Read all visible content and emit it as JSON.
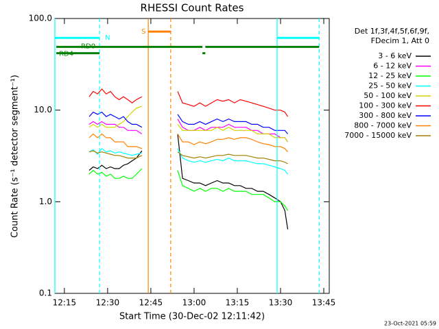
{
  "chart_data": {
    "type": "line",
    "title": "RHESSI Count Rates",
    "x_label": "Start Time (30-Dec-02 12:11:42)",
    "y_label": "Count Rate (s⁻¹ detector segment⁻¹)",
    "legend_header": [
      "Det 1f,3f,4f,5f,6f,9f,",
      "FDecim 1, Att 0"
    ],
    "footer": "23-Oct-2021 05:59",
    "log_y": true,
    "xlim": [
      731.7,
      826.9
    ],
    "ylim": [
      0.1,
      100
    ],
    "xticks": [
      {
        "value": 735,
        "label": "12:15"
      },
      {
        "value": 750,
        "label": "12:30"
      },
      {
        "value": 765,
        "label": "12:45"
      },
      {
        "value": 780,
        "label": "13:00"
      },
      {
        "value": 795,
        "label": "13:15"
      },
      {
        "value": 810,
        "label": "13:30"
      },
      {
        "value": 825,
        "label": "13:45"
      }
    ],
    "yticks": [
      0.1,
      {
        "value": 1,
        "label": "1.0"
      },
      {
        "value": 10,
        "label": "10.0"
      },
      {
        "value": 100,
        "label": "100.0"
      }
    ],
    "x": [
      743.6,
      745,
      746.5,
      748,
      749.5,
      751,
      752.5,
      754,
      755.5,
      757,
      758.5,
      760,
      761.9,
      768,
      774.3,
      776,
      778,
      780,
      782,
      784,
      786,
      788,
      790,
      792,
      794,
      796,
      798,
      800,
      802,
      804,
      806,
      808,
      810,
      811.5,
      812.5
    ],
    "series": [
      {
        "name": "3 - 6 keV",
        "color": "#000000",
        "values": [
          2.2,
          2.4,
          2.3,
          2.5,
          2.3,
          2.4,
          2.3,
          2.3,
          2.5,
          2.6,
          2.8,
          3,
          3.6,
          null,
          5.5,
          1.8,
          1.7,
          1.6,
          1.6,
          1.5,
          1.6,
          1.7,
          1.6,
          1.6,
          1.5,
          1.5,
          1.4,
          1.4,
          1.3,
          1.3,
          1.2,
          1.1,
          1,
          0.8,
          0.5
        ]
      },
      {
        "name": "6 - 12 keV",
        "color": "#ff00ff",
        "values": [
          7,
          7.5,
          7,
          7.5,
          7,
          7,
          7,
          6.5,
          6.5,
          6,
          6,
          6,
          5.5,
          null,
          8,
          6.5,
          6,
          6,
          6.5,
          6,
          6.5,
          6.5,
          6.5,
          7,
          6.5,
          6.5,
          6.5,
          6,
          6,
          5.5,
          5.5,
          5.5,
          5,
          5,
          4.5
        ]
      },
      {
        "name": "12 - 25 keV",
        "color": "#00ff00",
        "values": [
          2,
          2.2,
          2,
          2.1,
          1.9,
          2,
          1.8,
          1.8,
          1.9,
          1.8,
          1.8,
          2,
          2.3,
          null,
          2.2,
          1.5,
          1.4,
          1.3,
          1.4,
          1.3,
          1.4,
          1.4,
          1.3,
          1.4,
          1.3,
          1.3,
          1.3,
          1.2,
          1.2,
          1.2,
          1.1,
          1,
          1,
          0.9,
          0.8
        ]
      },
      {
        "name": "25 - 50 keV",
        "color": "#00ffff",
        "values": [
          3.5,
          3.7,
          3.3,
          3.8,
          3.5,
          3.6,
          3.4,
          3.5,
          3.4,
          3.3,
          3.2,
          3.3,
          3.4,
          null,
          3.8,
          3,
          2.8,
          2.7,
          2.8,
          2.7,
          2.8,
          2.9,
          2.8,
          3,
          2.8,
          2.8,
          2.8,
          2.7,
          2.6,
          2.6,
          2.5,
          2.4,
          2.3,
          2.2,
          2
        ]
      },
      {
        "name": "50 - 100 keV",
        "color": "#d4d400",
        "values": [
          6.5,
          7,
          6.5,
          7,
          6.5,
          6.5,
          6.5,
          7,
          7.5,
          8.5,
          9.5,
          10.5,
          11,
          null,
          7,
          6,
          6,
          6,
          6,
          6,
          6,
          6.5,
          6,
          6.5,
          6,
          6,
          6,
          6,
          5.5,
          5.5,
          5.5,
          5,
          5,
          5,
          4.5
        ]
      },
      {
        "name": "100 - 300 keV",
        "color": "#ff0000",
        "values": [
          14,
          16,
          15,
          17,
          15,
          16,
          14,
          13,
          14,
          13,
          12,
          13,
          14,
          null,
          16,
          12,
          11.5,
          11,
          12,
          11,
          12,
          13,
          12.5,
          13,
          12,
          13,
          12.5,
          12,
          11.5,
          11,
          10.5,
          10,
          10,
          9.5,
          8.5
        ]
      },
      {
        "name": "300 - 800 keV",
        "color": "#0000ff",
        "values": [
          8.5,
          9.5,
          9,
          9.5,
          8.5,
          9,
          8.5,
          8,
          8.5,
          7.5,
          7,
          7,
          6.5,
          null,
          9,
          7.5,
          7,
          7,
          7.5,
          7,
          7.5,
          8,
          7.5,
          8,
          7.5,
          7.5,
          7.5,
          7,
          7,
          6.5,
          6.5,
          6,
          6,
          6,
          5.5
        ]
      },
      {
        "name": "800 - 7000 keV",
        "color": "#ff8000",
        "values": [
          5,
          5.5,
          5,
          5.5,
          5,
          5,
          4.5,
          4.5,
          4.5,
          4,
          4,
          4,
          3.8,
          null,
          5.5,
          4.5,
          4.5,
          4.2,
          4.5,
          4.3,
          4.5,
          4.8,
          4.8,
          5,
          4.8,
          5,
          5,
          4.8,
          4.5,
          4.3,
          4.2,
          4,
          4,
          3.8,
          3.5
        ]
      },
      {
        "name": "7000 - 15000 keV",
        "color": "#a08000",
        "values": [
          3.5,
          3.6,
          3.4,
          3.5,
          3.4,
          3.3,
          3.2,
          3.2,
          3.1,
          3,
          3,
          3,
          3.2,
          null,
          3.5,
          3.2,
          3.1,
          3,
          3.1,
          3,
          3.1,
          3.2,
          3.2,
          3.3,
          3.2,
          3.2,
          3.2,
          3.1,
          3,
          3,
          2.9,
          2.8,
          2.8,
          2.7,
          2.6
        ]
      }
    ],
    "markers": [
      {
        "x": 731.7,
        "color": "#00ffff",
        "dashed": false
      },
      {
        "x": 747.2,
        "color": "#00ffff",
        "dashed": true
      },
      {
        "x": 808.8,
        "color": "#00ffff",
        "dashed": false
      },
      {
        "x": 823.4,
        "color": "#00ffff",
        "dashed": true
      },
      {
        "x": 764.1,
        "color": "#ff8000",
        "dashed": false
      },
      {
        "x": 771.9,
        "color": "#ff8000",
        "dashed": true
      }
    ],
    "state_bars": [
      {
        "label": "N",
        "color": "#00ffff",
        "y": 61.5,
        "ranges": [
          [
            731.7,
            747.2
          ],
          [
            808.8,
            823.4
          ]
        ]
      },
      {
        "label": "RD0",
        "color": "#008000",
        "y": 49,
        "ranges": [
          [
            732.2,
            782.9
          ],
          [
            783.9,
            823.4
          ]
        ]
      },
      {
        "label": "RD4",
        "color": "#008000",
        "y": 41.8,
        "ranges": [
          [
            732.2,
            747.2
          ],
          [
            782.9,
            783.9
          ]
        ]
      },
      {
        "label": "S",
        "color": "#ff8000",
        "y": 72,
        "ranges": [
          [
            764.1,
            771.9
          ]
        ]
      }
    ]
  }
}
